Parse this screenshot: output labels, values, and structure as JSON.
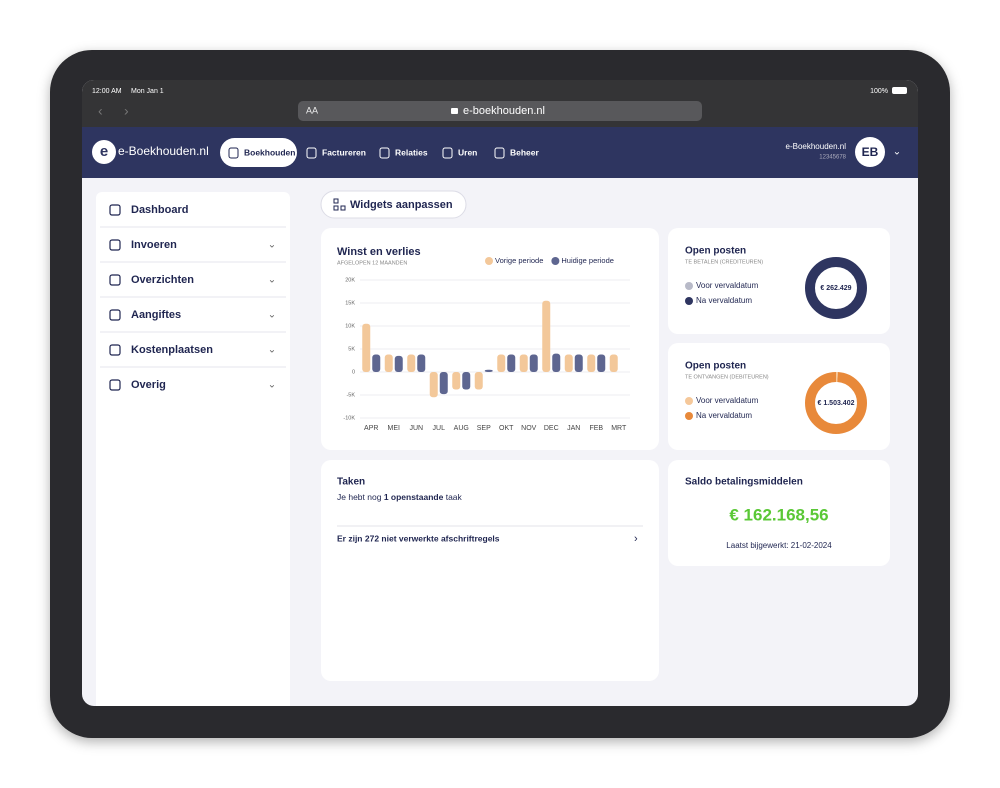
{
  "status_bar": {
    "time": "12:00 AM",
    "date": "Mon Jan 1",
    "battery": "100%"
  },
  "browser": {
    "text_size": "AA",
    "url": "e-boekhouden.nl"
  },
  "nav": {
    "logo": "e-Boekhouden.nl",
    "items": [
      "Boekhouden",
      "Factureren",
      "Relaties",
      "Uren",
      "Beheer"
    ],
    "account_name": "e-Boekhouden.nl",
    "account_number": "12345678",
    "avatar": "EB"
  },
  "sidebar": {
    "items": [
      "Dashboard",
      "Invoeren",
      "Overzichten",
      "Aangiftes",
      "Kostenplaatsen",
      "Overig"
    ]
  },
  "toolbar": {
    "button": "Widgets aanpassen"
  },
  "chart_data": [
    {
      "type": "bar",
      "title": "Winst en verlies",
      "subtitle": "AFGELOPEN 12 MAANDEN",
      "categories": [
        "APR",
        "MEI",
        "JUN",
        "JUL",
        "AUG",
        "SEP",
        "OKT",
        "NOV",
        "DEC",
        "JAN",
        "FEB",
        "MRT"
      ],
      "series": [
        {
          "name": "Vorige periode",
          "color": "#f3c89a",
          "values": [
            10500,
            3800,
            3800,
            -5500,
            -3800,
            -3800,
            3800,
            3800,
            15500,
            3800,
            3800,
            3800
          ]
        },
        {
          "name": "Huidige periode",
          "color": "#5e6690",
          "values": [
            3800,
            3500,
            3800,
            -4800,
            -3800,
            500,
            3800,
            3800,
            4000,
            3800,
            3800,
            null
          ]
        }
      ],
      "ylim": [
        -10000,
        20000
      ],
      "yticks": [
        {
          "value": 20000,
          "label": "20K"
        },
        {
          "value": 15000,
          "label": "15K"
        },
        {
          "value": 10000,
          "label": "10K"
        },
        {
          "value": 5000,
          "label": "5K"
        },
        0,
        {
          "value": -5000,
          "label": "-5K"
        },
        {
          "value": -10000,
          "label": "-10K"
        }
      ],
      "grid": true
    },
    {
      "type": "donut",
      "title": "Open posten",
      "subtitle": "TE BETALEN (CREDITEUREN)",
      "center_label": "€ 262.429",
      "categories": [
        "Voor vervaldatum",
        "Na vervaldatum"
      ],
      "values": [
        0,
        100
      ],
      "colors": [
        "#b8bac8",
        "#2e3560"
      ]
    },
    {
      "type": "donut",
      "title": "Open posten",
      "subtitle": "TE ONTVANGEN (DEBITEUREN)",
      "center_label": "€ 1.503.402",
      "categories": [
        "Voor vervaldatum",
        "Na vervaldatum"
      ],
      "values": [
        1,
        99
      ],
      "colors": [
        "#f5c89a",
        "#e8893a"
      ]
    }
  ],
  "tasks": {
    "title": "Taken",
    "summary_prefix": "Je hebt nog",
    "summary_bold": "1 openstaande",
    "summary_suffix": "taak",
    "link": "Er zijn 272 niet verwerkte afschriftregels"
  },
  "balance": {
    "title": "Saldo betalingsmiddelen",
    "amount": "€ 162.168,56",
    "updated": "Laatst bijgewerkt: 21-02-2024"
  }
}
